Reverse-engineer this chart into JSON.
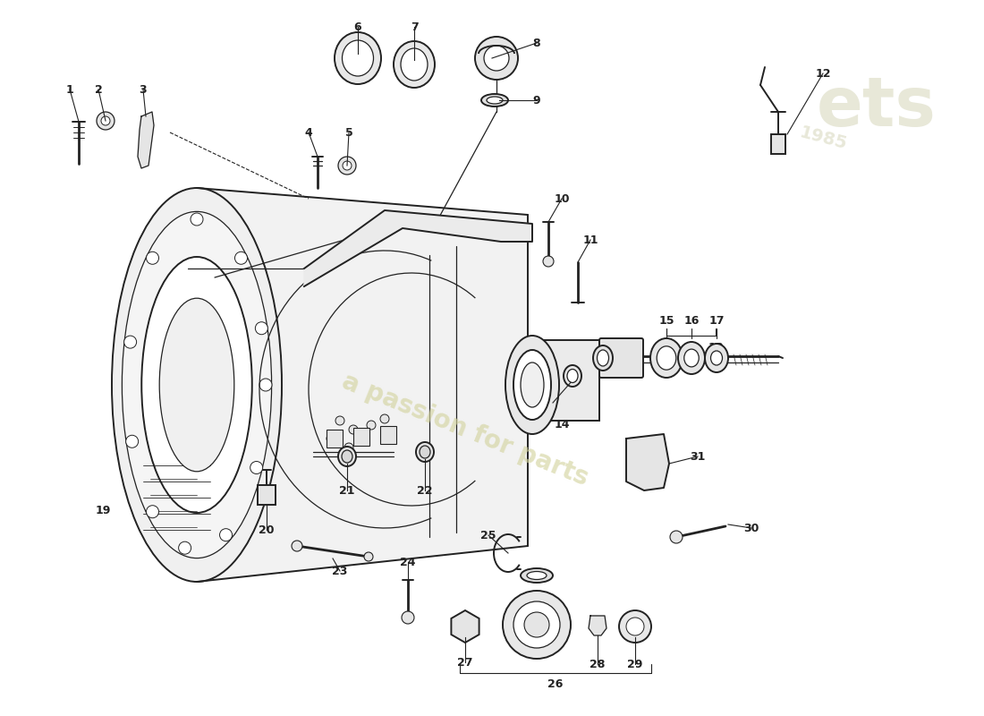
{
  "bg_color": "#ffffff",
  "line_color": "#222222",
  "lw_main": 1.4,
  "lw_thin": 0.9,
  "lw_thick": 2.0,
  "watermark_color": "#d4d4a0",
  "label_fontsize": 9,
  "label_fontsize_sm": 8
}
